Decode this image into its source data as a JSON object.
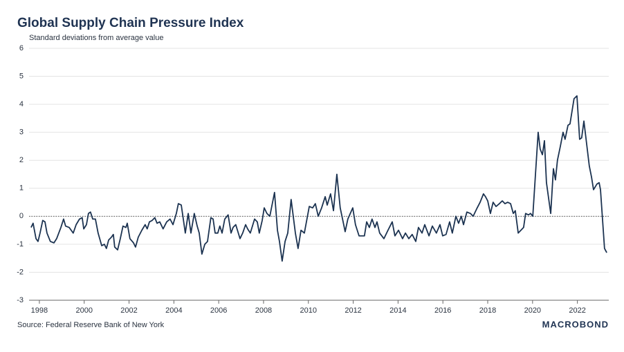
{
  "chart_data": {
    "type": "line",
    "title": "Global Supply Chain Pressure Index",
    "subtitle": "Standard deviations from average value",
    "source": "Source: Federal Reserve Bank of New York",
    "brand": "MACROBOND",
    "series": [
      {
        "name": "Global Supply Chain Pressure Index",
        "color": "#1b3250",
        "x": [
          1997.63,
          1997.72,
          1997.85,
          1997.94,
          1998.03,
          1998.15,
          1998.25,
          1998.34,
          1998.49,
          1998.65,
          1998.77,
          1998.96,
          1999.08,
          1999.17,
          1999.33,
          1999.42,
          1999.51,
          1999.64,
          1999.79,
          1999.91,
          1999.98,
          2000.1,
          2000.19,
          2000.28,
          2000.38,
          2000.5,
          2000.62,
          2000.78,
          2000.9,
          2000.99,
          2001.09,
          2001.21,
          2001.3,
          2001.36,
          2001.49,
          2001.61,
          2001.73,
          2001.86,
          2001.92,
          2002.04,
          2002.2,
          2002.29,
          2002.41,
          2002.57,
          2002.72,
          2002.81,
          2002.91,
          2003.03,
          2003.15,
          2003.25,
          2003.37,
          2003.52,
          2003.68,
          2003.83,
          2003.96,
          2004.11,
          2004.2,
          2004.33,
          2004.51,
          2004.64,
          2004.76,
          2004.91,
          2005.04,
          2005.13,
          2005.25,
          2005.38,
          2005.5,
          2005.65,
          2005.75,
          2005.84,
          2005.96,
          2006.05,
          2006.15,
          2006.27,
          2006.42,
          2006.55,
          2006.64,
          2006.76,
          2006.95,
          2007.07,
          2007.2,
          2007.29,
          2007.41,
          2007.6,
          2007.72,
          2007.81,
          2007.94,
          2008.03,
          2008.15,
          2008.28,
          2008.49,
          2008.62,
          2008.71,
          2008.83,
          2008.96,
          2009.08,
          2009.23,
          2009.42,
          2009.54,
          2009.67,
          2009.82,
          2010.04,
          2010.19,
          2010.31,
          2010.44,
          2010.59,
          2010.75,
          2010.84,
          2010.99,
          2011.12,
          2011.27,
          2011.42,
          2011.55,
          2011.64,
          2011.76,
          2011.98,
          2012.1,
          2012.26,
          2012.5,
          2012.6,
          2012.72,
          2012.84,
          2012.97,
          2013.06,
          2013.18,
          2013.37,
          2013.55,
          2013.74,
          2013.86,
          2014.02,
          2014.2,
          2014.33,
          2014.48,
          2014.63,
          2014.79,
          2014.91,
          2015.07,
          2015.19,
          2015.38,
          2015.53,
          2015.71,
          2015.87,
          2015.99,
          2016.14,
          2016.3,
          2016.42,
          2016.58,
          2016.7,
          2016.82,
          2016.92,
          2017.07,
          2017.23,
          2017.35,
          2017.53,
          2017.66,
          2017.81,
          2017.9,
          2018.0,
          2018.12,
          2018.24,
          2018.37,
          2018.52,
          2018.65,
          2018.77,
          2018.89,
          2019.02,
          2019.14,
          2019.23,
          2019.36,
          2019.48,
          2019.6,
          2019.69,
          2019.82,
          2019.91,
          2020.01,
          2020.13,
          2020.25,
          2020.34,
          2020.44,
          2020.53,
          2020.62,
          2020.81,
          2020.93,
          2021.02,
          2021.11,
          2021.24,
          2021.36,
          2021.45,
          2021.58,
          2021.67,
          2021.85,
          2021.98,
          2022.1,
          2022.19,
          2022.29,
          2022.41,
          2022.53,
          2022.63,
          2022.72,
          2022.87,
          2022.97,
          2023.03,
          2023.12,
          2023.21,
          2023.31
        ],
        "values": [
          -0.4,
          -0.25,
          -0.8,
          -0.9,
          -0.6,
          -0.15,
          -0.2,
          -0.6,
          -0.9,
          -0.95,
          -0.8,
          -0.4,
          -0.1,
          -0.35,
          -0.4,
          -0.5,
          -0.6,
          -0.3,
          -0.1,
          -0.05,
          -0.45,
          -0.3,
          0.1,
          0.15,
          -0.1,
          -0.1,
          -0.6,
          -1.05,
          -1.0,
          -1.15,
          -0.85,
          -0.75,
          -0.65,
          -1.1,
          -1.2,
          -0.8,
          -0.35,
          -0.4,
          -0.25,
          -0.8,
          -0.95,
          -1.1,
          -0.75,
          -0.5,
          -0.3,
          -0.45,
          -0.2,
          -0.15,
          -0.05,
          -0.25,
          -0.2,
          -0.45,
          -0.2,
          -0.1,
          -0.3,
          0.1,
          0.45,
          0.4,
          -0.6,
          0.1,
          -0.6,
          0.1,
          -0.35,
          -0.6,
          -1.35,
          -1.0,
          -0.9,
          -0.05,
          -0.1,
          -0.6,
          -0.6,
          -0.35,
          -0.6,
          -0.1,
          0.05,
          -0.6,
          -0.4,
          -0.3,
          -0.8,
          -0.6,
          -0.3,
          -0.45,
          -0.6,
          -0.1,
          -0.2,
          -0.6,
          -0.15,
          0.3,
          0.1,
          0.0,
          0.85,
          -0.5,
          -0.9,
          -1.6,
          -0.9,
          -0.6,
          0.6,
          -0.6,
          -1.15,
          -0.5,
          -0.6,
          0.35,
          0.3,
          0.45,
          0.0,
          0.3,
          0.7,
          0.4,
          0.8,
          0.2,
          1.5,
          0.3,
          -0.2,
          -0.55,
          -0.1,
          0.3,
          -0.3,
          -0.7,
          -0.7,
          -0.2,
          -0.4,
          -0.1,
          -0.4,
          -0.2,
          -0.6,
          -0.8,
          -0.5,
          -0.2,
          -0.7,
          -0.5,
          -0.8,
          -0.6,
          -0.8,
          -0.65,
          -0.9,
          -0.4,
          -0.6,
          -0.3,
          -0.7,
          -0.35,
          -0.6,
          -0.3,
          -0.7,
          -0.65,
          -0.2,
          -0.6,
          0.0,
          -0.25,
          0.0,
          -0.3,
          0.15,
          0.1,
          0.0,
          0.3,
          0.5,
          0.8,
          0.7,
          0.55,
          0.1,
          0.5,
          0.35,
          0.45,
          0.55,
          0.45,
          0.5,
          0.45,
          0.1,
          0.2,
          -0.6,
          -0.5,
          -0.4,
          0.1,
          0.05,
          0.1,
          0.0,
          1.5,
          3.0,
          2.4,
          2.2,
          2.7,
          1.2,
          0.1,
          1.7,
          1.3,
          2.0,
          2.5,
          3.0,
          2.75,
          3.25,
          3.3,
          4.2,
          4.3,
          2.75,
          2.8,
          3.4,
          2.6,
          1.8,
          1.4,
          0.95,
          1.15,
          1.2,
          0.95,
          -0.1,
          -1.15,
          -1.3
        ]
      }
    ],
    "xlim": [
      1997.54,
      2023.4
    ],
    "xticks": [
      1998,
      2000,
      2002,
      2004,
      2006,
      2008,
      2010,
      2012,
      2014,
      2016,
      2018,
      2020,
      2022
    ],
    "ylim": [
      -3,
      6
    ],
    "yticks": [
      -3,
      -2,
      -1,
      0,
      1,
      2,
      3,
      4,
      5,
      6
    ],
    "grid": true,
    "zero_line": true
  }
}
